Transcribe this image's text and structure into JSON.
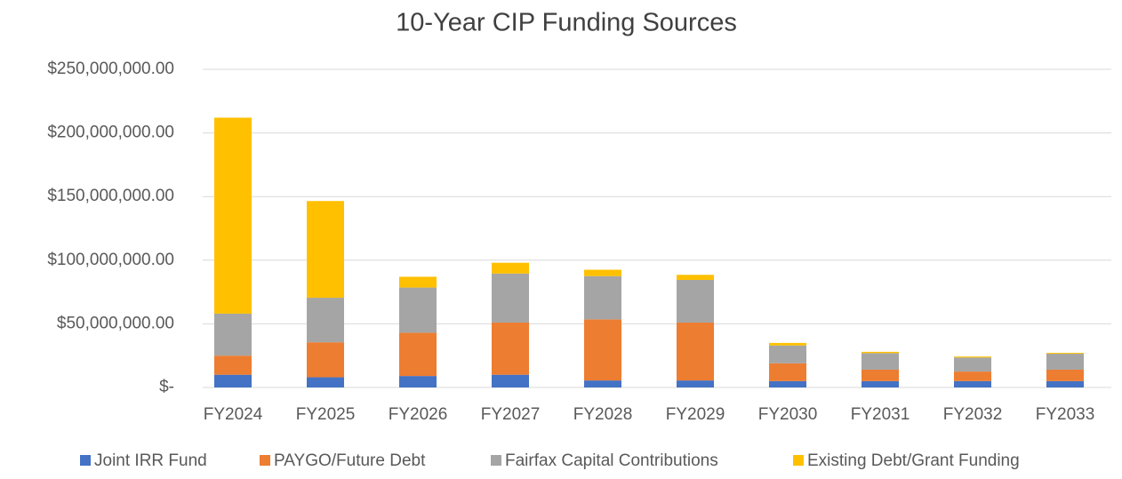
{
  "chart_data": {
    "type": "stacked_bar",
    "title": "10-Year CIP Funding Sources",
    "categories": [
      "FY2024",
      "FY2025",
      "FY2026",
      "FY2027",
      "FY2028",
      "FY2029",
      "FY2030",
      "FY2031",
      "FY2032",
      "FY2033"
    ],
    "series": [
      {
        "name": "Joint IRR Fund",
        "color": "#4472c4",
        "values": [
          10000000,
          8000000,
          9000000,
          10000000,
          5500000,
          5500000,
          5000000,
          5000000,
          5000000,
          5000000
        ]
      },
      {
        "name": "PAYGO/Future Debt",
        "color": "#ed7d31",
        "values": [
          15000000,
          27500000,
          34000000,
          41000000,
          48000000,
          45500000,
          14000000,
          9000000,
          7500000,
          9000000
        ]
      },
      {
        "name": "Fairfax Capital Contributions",
        "color": "#a5a5a5",
        "values": [
          33000000,
          35000000,
          35500000,
          38500000,
          34000000,
          33500000,
          14000000,
          13000000,
          11000000,
          12500000
        ]
      },
      {
        "name": "Existing Debt/Grant Funding",
        "color": "#ffc000",
        "values": [
          154000000,
          76000000,
          8500000,
          8500000,
          5000000,
          4000000,
          2000000,
          1000000,
          800000,
          700000
        ]
      }
    ],
    "ylim": [
      0,
      250000000
    ],
    "yticks": [
      {
        "value": 0,
        "label": "$-"
      },
      {
        "value": 50000000,
        "label": "$50,000,000.00"
      },
      {
        "value": 100000000,
        "label": "$100,000,000.00"
      },
      {
        "value": 150000000,
        "label": "$150,000,000.00"
      },
      {
        "value": 200000000,
        "label": "$200,000,000.00"
      },
      {
        "value": 250000000,
        "label": "$250,000,000.00"
      }
    ],
    "grid": true,
    "legend": "bottom"
  }
}
